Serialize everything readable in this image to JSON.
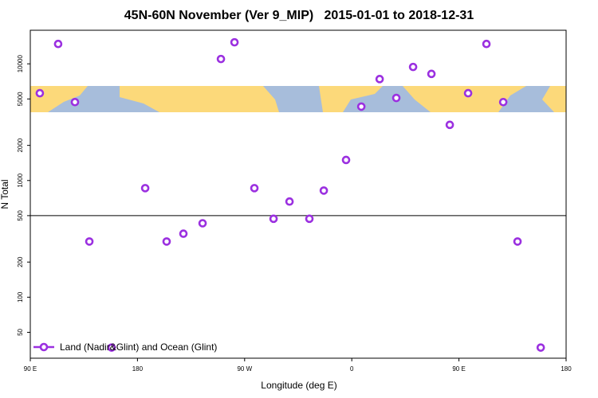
{
  "chart_data": {
    "type": "scatter",
    "title": "45N-60N November (Ver 9_MIP)   2015-01-01 to 2018-12-31",
    "xlabel": "Longitude (deg E)",
    "ylabel": "N Total",
    "xlim": [
      90,
      540
    ],
    "ylim": [
      30,
      19400
    ],
    "ylog": true,
    "xticks": [
      {
        "value": 90,
        "label": "90 E"
      },
      {
        "value": 180,
        "label": "180"
      },
      {
        "value": 270,
        "label": "90 W"
      },
      {
        "value": 360,
        "label": "0"
      },
      {
        "value": 450,
        "label": "90 E"
      },
      {
        "value": 540,
        "label": "180"
      }
    ],
    "yticks": [
      50,
      100,
      200,
      500,
      1000,
      2000,
      5000,
      10000
    ],
    "hline": 500,
    "legend": "bottom-left",
    "series": [
      {
        "name": "Land (Nadir&Glint) and Ocean (Glint)",
        "color": "#9b30e0",
        "x": [
          98,
          113.4,
          127.5,
          139.6,
          158.3,
          186.5,
          204.5,
          218.6,
          234.7,
          250.1,
          261.5,
          278.2,
          294.3,
          307.7,
          324.4,
          336.5,
          355.2,
          368,
          383.4,
          397.4,
          411.5,
          426.9,
          442.3,
          457.7,
          473.1,
          487.2,
          499.2,
          518.7
        ],
        "values": [
          5600,
          14800,
          4700,
          300,
          37,
          860,
          300,
          350,
          430,
          11000,
          15300,
          860,
          470,
          660,
          470,
          820,
          1500,
          4300,
          7400,
          5100,
          9400,
          8200,
          3000,
          5600,
          14800,
          4700,
          300,
          37
        ]
      }
    ]
  }
}
